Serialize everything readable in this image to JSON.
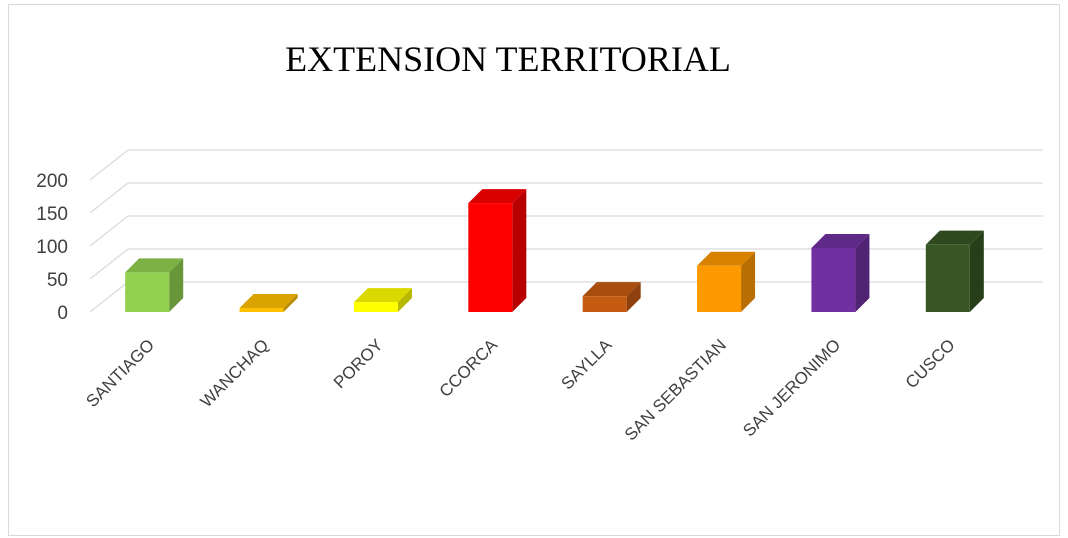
{
  "chart_data": {
    "type": "bar",
    "title": "EXTENSION TERRITORIAL",
    "xlabel": "",
    "ylabel": "",
    "categories": [
      "SANTIAGO",
      "WANCHAQ",
      "POROY",
      "CCORCA",
      "SAYLLA",
      "SAN SEBASTIAN",
      "SAN JERONIMO",
      "CUSCO"
    ],
    "values": [
      60,
      6,
      15,
      165,
      24,
      70,
      97,
      102
    ],
    "ylim": [
      0,
      200
    ],
    "yticks": [
      0,
      50,
      100,
      150,
      200
    ],
    "grid": true,
    "legend": "none",
    "colors": [
      "#92d050",
      "#ffc000",
      "#ffff00",
      "#ff0000",
      "#c55a11",
      "#ff9900",
      "#7030a0",
      "#375623"
    ]
  }
}
